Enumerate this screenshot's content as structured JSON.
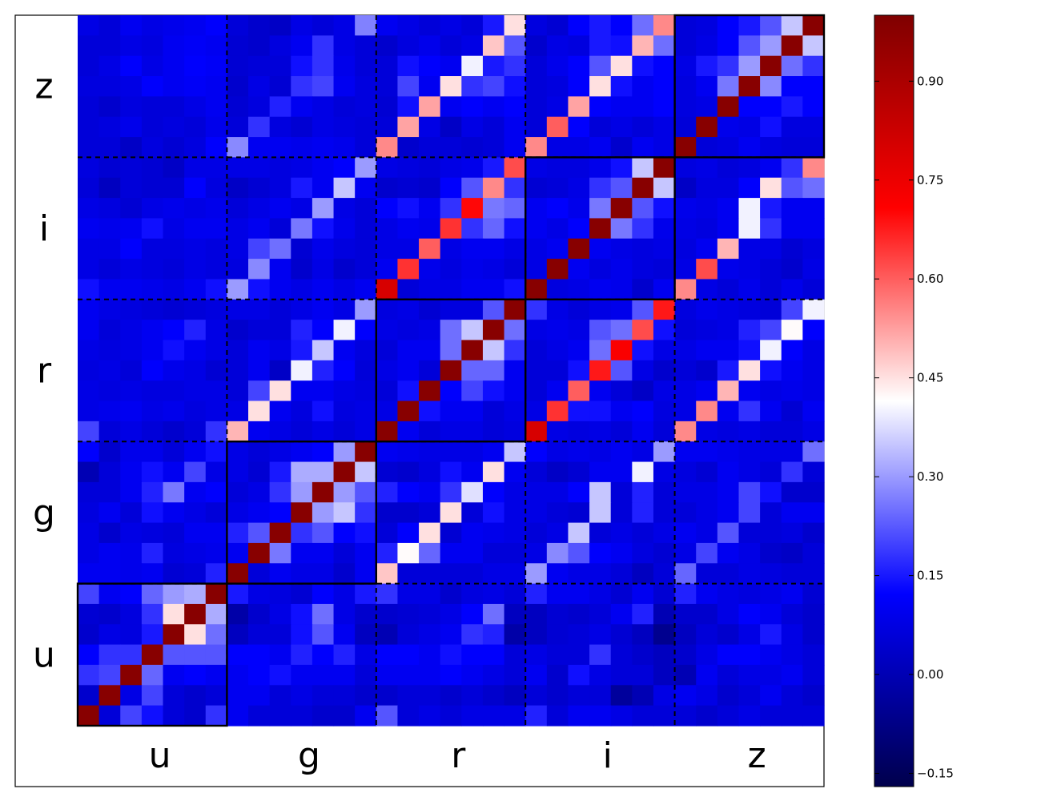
{
  "chart_data": {
    "type": "heatmap",
    "title": "",
    "xlabel": "",
    "ylabel": "",
    "x_categories": [
      "u",
      "g",
      "r",
      "i",
      "z"
    ],
    "y_categories": [
      "u",
      "g",
      "r",
      "i",
      "z"
    ],
    "cells_per_block": 7,
    "grid": false,
    "colormap": "seismic",
    "colormap_stops": [
      "#00004c",
      "#0000ff",
      "#ffffff",
      "#ff0000",
      "#7f0000"
    ],
    "colorbar": {
      "vmin": -0.17,
      "vmax": 1.0,
      "ticks": [
        -0.15,
        0.0,
        0.15,
        0.3,
        0.45,
        0.6,
        0.75,
        0.9
      ],
      "tick_labels": [
        "−0.15",
        "0.00",
        "0.15",
        "0.30",
        "0.45",
        "0.60",
        "0.75",
        "0.90"
      ],
      "placement": "right"
    },
    "block_borders": "solid on diagonal blocks, dashed elsewhere",
    "matrix_note": "35x35 correlation matrix, rows listed from top (z band, highest index) to bottom (u band, index 0)",
    "matrix": [
      [
        0.08,
        0.06,
        0.1,
        0.08,
        0.09,
        0.1,
        0.12,
        0.06,
        0.04,
        0.03,
        0.08,
        0.06,
        0.08,
        0.27,
        0.1,
        0.08,
        0.06,
        0.08,
        0.06,
        0.15,
        0.45,
        0.07,
        0.05,
        0.12,
        0.15,
        0.12,
        0.25,
        0.55,
        0.06,
        0.07,
        0.12,
        0.15,
        0.22,
        0.35,
        0.98
      ],
      [
        0.06,
        0.06,
        0.08,
        0.07,
        0.1,
        0.11,
        0.1,
        0.05,
        0.04,
        0.07,
        0.1,
        0.18,
        0.08,
        0.06,
        0.04,
        0.07,
        0.09,
        0.06,
        0.08,
        0.48,
        0.22,
        0.04,
        0.08,
        0.07,
        0.15,
        0.14,
        0.5,
        0.25,
        0.06,
        0.08,
        0.12,
        0.22,
        0.3,
        0.98,
        0.35
      ],
      [
        0.06,
        0.08,
        0.12,
        0.08,
        0.1,
        0.12,
        0.11,
        0.05,
        0.06,
        0.06,
        0.14,
        0.18,
        0.09,
        0.06,
        0.06,
        0.14,
        0.12,
        0.1,
        0.4,
        0.15,
        0.18,
        0.06,
        0.09,
        0.12,
        0.22,
        0.45,
        0.14,
        0.12,
        0.08,
        0.15,
        0.18,
        0.3,
        0.98,
        0.25,
        0.18
      ],
      [
        0.07,
        0.07,
        0.08,
        0.12,
        0.1,
        0.11,
        0.1,
        0.04,
        0.08,
        0.05,
        0.18,
        0.2,
        0.1,
        0.07,
        0.06,
        0.2,
        0.1,
        0.45,
        0.18,
        0.2,
        0.14,
        0.06,
        0.07,
        0.12,
        0.45,
        0.14,
        0.1,
        0.12,
        0.07,
        0.1,
        0.26,
        0.98,
        0.28,
        0.12,
        0.12
      ],
      [
        0.06,
        0.04,
        0.07,
        0.06,
        0.06,
        0.08,
        0.1,
        0.05,
        0.07,
        0.16,
        0.1,
        0.08,
        0.06,
        0.07,
        0.05,
        0.14,
        0.52,
        0.1,
        0.12,
        0.1,
        0.12,
        0.06,
        0.08,
        0.52,
        0.12,
        0.1,
        0.1,
        0.12,
        0.07,
        0.08,
        0.98,
        0.12,
        0.12,
        0.15,
        0.12
      ],
      [
        0.06,
        0.07,
        0.09,
        0.06,
        0.07,
        0.06,
        0.09,
        0.06,
        0.18,
        0.07,
        0.05,
        0.08,
        0.07,
        0.06,
        0.06,
        0.52,
        0.08,
        0.03,
        0.08,
        0.06,
        0.1,
        0.06,
        0.6,
        0.12,
        0.06,
        0.08,
        0.06,
        0.08,
        0.06,
        0.98,
        0.09,
        0.08,
        0.14,
        0.07,
        0.07
      ],
      [
        0.06,
        0.06,
        0.03,
        0.07,
        0.05,
        0.07,
        0.12,
        0.28,
        0.1,
        0.1,
        0.09,
        0.1,
        0.09,
        0.06,
        0.55,
        0.04,
        0.06,
        0.06,
        0.05,
        0.06,
        0.1,
        0.55,
        0.08,
        0.08,
        0.1,
        0.04,
        0.1,
        0.08,
        0.98,
        0.06,
        0.07,
        0.1,
        0.07,
        0.06,
        0.06
      ],
      [
        0.07,
        0.05,
        0.06,
        0.05,
        0.03,
        0.08,
        0.08,
        0.08,
        0.08,
        0.07,
        0.08,
        0.1,
        0.12,
        0.3,
        0.08,
        0.07,
        0.06,
        0.08,
        0.09,
        0.15,
        0.62,
        0.08,
        0.07,
        0.07,
        0.09,
        0.14,
        0.35,
        0.98,
        0.07,
        0.08,
        0.06,
        0.07,
        0.1,
        0.18,
        0.55
      ],
      [
        0.06,
        0.02,
        0.06,
        0.05,
        0.05,
        0.12,
        0.07,
        0.03,
        0.05,
        0.07,
        0.15,
        0.1,
        0.35,
        0.1,
        0.04,
        0.05,
        0.04,
        0.12,
        0.22,
        0.55,
        0.18,
        0.05,
        0.06,
        0.08,
        0.18,
        0.22,
        0.98,
        0.35,
        0.03,
        0.07,
        0.07,
        0.12,
        0.45,
        0.22,
        0.25
      ],
      [
        0.08,
        0.07,
        0.05,
        0.08,
        0.09,
        0.08,
        0.09,
        0.06,
        0.08,
        0.1,
        0.08,
        0.3,
        0.08,
        0.06,
        0.12,
        0.14,
        0.1,
        0.18,
        0.7,
        0.26,
        0.24,
        0.1,
        0.12,
        0.09,
        0.26,
        0.98,
        0.22,
        0.14,
        0.09,
        0.08,
        0.1,
        0.4,
        0.15,
        0.1,
        0.1
      ],
      [
        0.1,
        0.09,
        0.1,
        0.14,
        0.08,
        0.1,
        0.1,
        0.08,
        0.1,
        0.06,
        0.26,
        0.14,
        0.09,
        0.06,
        0.08,
        0.1,
        0.09,
        0.65,
        0.18,
        0.24,
        0.14,
        0.1,
        0.08,
        0.12,
        0.98,
        0.26,
        0.18,
        0.09,
        0.08,
        0.07,
        0.1,
        0.4,
        0.18,
        0.1,
        0.1
      ],
      [
        0.08,
        0.08,
        0.12,
        0.07,
        0.07,
        0.08,
        0.07,
        0.08,
        0.2,
        0.25,
        0.05,
        0.09,
        0.07,
        0.06,
        0.08,
        0.08,
        0.6,
        0.08,
        0.1,
        0.1,
        0.08,
        0.08,
        0.1,
        0.98,
        0.1,
        0.08,
        0.07,
        0.08,
        0.07,
        0.1,
        0.5,
        0.08,
        0.08,
        0.05,
        0.07
      ],
      [
        0.08,
        0.06,
        0.08,
        0.07,
        0.06,
        0.08,
        0.07,
        0.07,
        0.28,
        0.1,
        0.04,
        0.08,
        0.04,
        0.06,
        0.1,
        0.65,
        0.09,
        0.07,
        0.09,
        0.08,
        0.06,
        0.08,
        0.98,
        0.1,
        0.07,
        0.09,
        0.07,
        0.06,
        0.08,
        0.62,
        0.09,
        0.08,
        0.06,
        0.04,
        0.08
      ],
      [
        0.14,
        0.1,
        0.1,
        0.09,
        0.08,
        0.1,
        0.14,
        0.3,
        0.14,
        0.1,
        0.08,
        0.1,
        0.08,
        0.1,
        0.8,
        0.06,
        0.08,
        0.08,
        0.1,
        0.1,
        0.14,
        0.98,
        0.07,
        0.08,
        0.1,
        0.09,
        0.04,
        0.1,
        0.55,
        0.08,
        0.06,
        0.09,
        0.06,
        0.09,
        0.06
      ],
      [
        0.1,
        0.08,
        0.07,
        0.06,
        0.05,
        0.06,
        0.07,
        0.08,
        0.08,
        0.06,
        0.08,
        0.1,
        0.08,
        0.3,
        0.07,
        0.08,
        0.05,
        0.07,
        0.07,
        0.22,
        0.98,
        0.18,
        0.08,
        0.06,
        0.08,
        0.09,
        0.22,
        0.68,
        0.07,
        0.09,
        0.08,
        0.07,
        0.06,
        0.2,
        0.4
      ],
      [
        0.1,
        0.06,
        0.08,
        0.1,
        0.12,
        0.16,
        0.08,
        0.04,
        0.06,
        0.06,
        0.16,
        0.12,
        0.4,
        0.12,
        0.08,
        0.07,
        0.08,
        0.25,
        0.35,
        0.98,
        0.25,
        0.08,
        0.09,
        0.08,
        0.22,
        0.25,
        0.62,
        0.14,
        0.06,
        0.07,
        0.08,
        0.16,
        0.2,
        0.42,
        0.12
      ],
      [
        0.08,
        0.07,
        0.08,
        0.1,
        0.14,
        0.1,
        0.08,
        0.06,
        0.1,
        0.08,
        0.15,
        0.35,
        0.1,
        0.07,
        0.06,
        0.1,
        0.1,
        0.25,
        0.98,
        0.35,
        0.18,
        0.06,
        0.08,
        0.1,
        0.25,
        0.72,
        0.14,
        0.08,
        0.08,
        0.1,
        0.1,
        0.14,
        0.4,
        0.12,
        0.08
      ],
      [
        0.07,
        0.08,
        0.06,
        0.12,
        0.09,
        0.08,
        0.05,
        0.06,
        0.1,
        0.03,
        0.4,
        0.16,
        0.12,
        0.06,
        0.08,
        0.1,
        0.06,
        0.98,
        0.24,
        0.24,
        0.1,
        0.06,
        0.06,
        0.14,
        0.68,
        0.22,
        0.08,
        0.04,
        0.06,
        0.04,
        0.15,
        0.45,
        0.14,
        0.1,
        0.08
      ],
      [
        0.08,
        0.07,
        0.08,
        0.07,
        0.07,
        0.08,
        0.08,
        0.06,
        0.2,
        0.45,
        0.1,
        0.1,
        0.08,
        0.07,
        0.06,
        0.14,
        0.98,
        0.12,
        0.2,
        0.14,
        0.1,
        0.06,
        0.1,
        0.6,
        0.1,
        0.06,
        0.03,
        0.08,
        0.08,
        0.1,
        0.5,
        0.1,
        0.08,
        0.09,
        0.08
      ],
      [
        0.08,
        0.09,
        0.1,
        0.08,
        0.09,
        0.07,
        0.08,
        0.08,
        0.45,
        0.1,
        0.07,
        0.14,
        0.07,
        0.08,
        0.08,
        0.98,
        0.14,
        0.1,
        0.1,
        0.06,
        0.08,
        0.08,
        0.65,
        0.14,
        0.14,
        0.1,
        0.12,
        0.07,
        0.08,
        0.55,
        0.1,
        0.18,
        0.1,
        0.05,
        0.1
      ],
      [
        0.2,
        0.06,
        0.08,
        0.06,
        0.04,
        0.06,
        0.18,
        0.5,
        0.1,
        0.08,
        0.06,
        0.08,
        0.06,
        0.08,
        0.98,
        0.1,
        0.06,
        0.08,
        0.08,
        0.06,
        0.07,
        0.8,
        0.08,
        0.07,
        0.08,
        0.06,
        0.1,
        0.06,
        0.55,
        0.08,
        0.07,
        0.08,
        0.06,
        0.06,
        0.08
      ],
      [
        0.12,
        0.04,
        0.09,
        0.09,
        0.06,
        0.1,
        0.14,
        0.08,
        0.06,
        0.08,
        0.1,
        0.12,
        0.3,
        0.98,
        0.1,
        0.09,
        0.08,
        0.08,
        0.08,
        0.1,
        0.35,
        0.12,
        0.08,
        0.09,
        0.08,
        0.1,
        0.08,
        0.3,
        0.1,
        0.1,
        0.09,
        0.08,
        0.08,
        0.08,
        0.25
      ],
      [
        0.0,
        0.06,
        0.1,
        0.14,
        0.1,
        0.2,
        0.08,
        0.08,
        0.05,
        0.15,
        0.32,
        0.32,
        0.98,
        0.35,
        0.05,
        0.04,
        0.07,
        0.14,
        0.1,
        0.45,
        0.1,
        0.06,
        0.03,
        0.05,
        0.1,
        0.1,
        0.4,
        0.08,
        0.07,
        0.05,
        0.1,
        0.08,
        0.06,
        0.18,
        0.06
      ],
      [
        0.06,
        0.06,
        0.1,
        0.16,
        0.26,
        0.1,
        0.12,
        0.06,
        0.08,
        0.18,
        0.3,
        0.98,
        0.3,
        0.22,
        0.16,
        0.12,
        0.1,
        0.18,
        0.38,
        0.12,
        0.08,
        0.08,
        0.08,
        0.12,
        0.35,
        0.06,
        0.16,
        0.06,
        0.08,
        0.08,
        0.1,
        0.2,
        0.14,
        0.04,
        0.04
      ],
      [
        0.07,
        0.1,
        0.06,
        0.14,
        0.1,
        0.08,
        0.06,
        0.08,
        0.1,
        0.12,
        0.98,
        0.3,
        0.35,
        0.18,
        0.04,
        0.04,
        0.06,
        0.45,
        0.06,
        0.14,
        0.08,
        0.08,
        0.06,
        0.05,
        0.35,
        0.06,
        0.16,
        0.06,
        0.06,
        0.08,
        0.1,
        0.2,
        0.06,
        0.1,
        0.1
      ],
      [
        0.08,
        0.04,
        0.08,
        0.07,
        0.06,
        0.1,
        0.1,
        0.16,
        0.22,
        0.98,
        0.18,
        0.22,
        0.12,
        0.14,
        0.06,
        0.12,
        0.45,
        0.05,
        0.1,
        0.09,
        0.08,
        0.06,
        0.08,
        0.35,
        0.06,
        0.08,
        0.06,
        0.08,
        0.1,
        0.08,
        0.22,
        0.06,
        0.06,
        0.07,
        0.04
      ],
      [
        0.08,
        0.1,
        0.09,
        0.16,
        0.07,
        0.08,
        0.09,
        0.1,
        0.98,
        0.26,
        0.1,
        0.1,
        0.06,
        0.1,
        0.16,
        0.42,
        0.24,
        0.1,
        0.1,
        0.06,
        0.06,
        0.08,
        0.28,
        0.22,
        0.12,
        0.1,
        0.07,
        0.05,
        0.08,
        0.2,
        0.1,
        0.08,
        0.04,
        0.03,
        0.06
      ],
      [
        0.1,
        0.1,
        0.09,
        0.1,
        0.05,
        0.06,
        0.16,
        0.98,
        0.06,
        0.1,
        0.08,
        0.08,
        0.04,
        0.1,
        0.48,
        0.06,
        0.06,
        0.06,
        0.06,
        0.08,
        0.08,
        0.3,
        0.1,
        0.08,
        0.08,
        0.06,
        0.02,
        0.06,
        0.24,
        0.06,
        0.06,
        0.08,
        0.07,
        0.06,
        0.06
      ],
      [
        0.2,
        0.1,
        0.12,
        0.24,
        0.3,
        0.32,
        0.98,
        0.15,
        0.08,
        0.07,
        0.05,
        0.12,
        0.08,
        0.15,
        0.18,
        0.08,
        0.08,
        0.04,
        0.07,
        0.08,
        0.06,
        0.16,
        0.1,
        0.1,
        0.08,
        0.05,
        0.1,
        0.05,
        0.16,
        0.1,
        0.08,
        0.07,
        0.08,
        0.1,
        0.05
      ],
      [
        0.05,
        0.04,
        0.07,
        0.18,
        0.45,
        0.98,
        0.32,
        -0.02,
        0.04,
        0.08,
        0.14,
        0.25,
        0.08,
        0.04,
        0.04,
        0.05,
        0.06,
        0.08,
        0.12,
        0.25,
        0.02,
        0.02,
        0.05,
        0.04,
        0.06,
        0.1,
        0.16,
        0.0,
        0.04,
        0.04,
        0.08,
        0.12,
        0.1,
        0.06,
        0.04
      ],
      [
        0.04,
        0.08,
        0.07,
        0.15,
        0.98,
        0.45,
        0.25,
        0.02,
        0.06,
        0.06,
        0.14,
        0.22,
        0.1,
        0.02,
        0.0,
        0.06,
        0.08,
        0.1,
        0.18,
        0.16,
        -0.02,
        0.02,
        0.05,
        0.06,
        0.08,
        0.05,
        0.02,
        -0.06,
        0.02,
        0.06,
        0.04,
        0.08,
        0.15,
        0.08,
        0.04
      ],
      [
        0.12,
        0.18,
        0.18,
        0.98,
        0.22,
        0.22,
        0.22,
        0.12,
        0.12,
        0.1,
        0.16,
        0.12,
        0.16,
        0.08,
        0.12,
        0.12,
        0.1,
        0.14,
        0.12,
        0.12,
        0.06,
        0.08,
        0.06,
        0.06,
        0.18,
        0.06,
        0.04,
        0.02,
        0.04,
        0.08,
        0.12,
        0.12,
        0.1,
        0.08,
        0.06
      ],
      [
        0.18,
        0.2,
        0.98,
        0.24,
        0.1,
        0.12,
        0.1,
        0.1,
        0.12,
        0.14,
        0.1,
        0.1,
        0.1,
        0.06,
        0.1,
        0.1,
        0.1,
        0.12,
        0.1,
        0.08,
        0.06,
        0.1,
        0.04,
        0.14,
        0.08,
        0.06,
        0.06,
        0.02,
        0.0,
        0.1,
        0.06,
        0.08,
        0.08,
        0.1,
        0.06
      ],
      [
        0.04,
        0.98,
        0.08,
        0.2,
        0.06,
        0.04,
        0.06,
        0.1,
        0.1,
        0.06,
        0.08,
        0.06,
        0.06,
        0.04,
        0.04,
        0.06,
        0.06,
        0.04,
        0.06,
        0.04,
        0.02,
        0.06,
        0.04,
        0.06,
        0.06,
        -0.04,
        0.0,
        0.08,
        0.1,
        0.08,
        0.04,
        0.06,
        0.1,
        0.06,
        0.04
      ],
      [
        0.98,
        0.06,
        0.2,
        0.14,
        0.06,
        0.04,
        0.18,
        0.1,
        0.06,
        0.06,
        0.06,
        0.04,
        0.04,
        0.1,
        0.22,
        0.06,
        0.08,
        0.06,
        0.08,
        0.08,
        0.08,
        0.16,
        0.06,
        0.1,
        0.1,
        0.08,
        0.06,
        0.06,
        0.06,
        0.04,
        0.06,
        0.08,
        0.06,
        0.06,
        0.06
      ]
    ]
  }
}
